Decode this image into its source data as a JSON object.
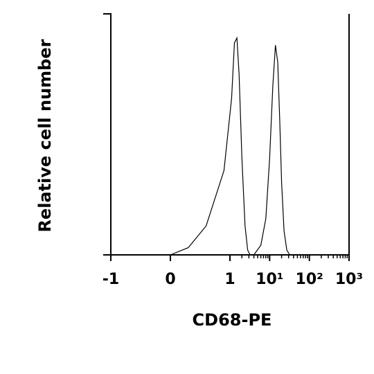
{
  "chart_data": {
    "type": "line",
    "xlabel": "CD68-PE",
    "ylabel": "Relative cell number",
    "xscale": "biexponential",
    "xlim": [
      -1,
      1000
    ],
    "ylim": [
      0,
      100
    ],
    "xticks": [
      -1,
      0,
      1,
      {
        "value": 10,
        "label": "10¹"
      },
      {
        "value": 100,
        "label": "10²"
      },
      {
        "value": 1000,
        "label": "10³"
      }
    ],
    "xminorticks": [
      2,
      3,
      4,
      5,
      6,
      7,
      8,
      9,
      20,
      30,
      40,
      50,
      60,
      70,
      80,
      90,
      200,
      300,
      400,
      500,
      600,
      700,
      800,
      900
    ],
    "series": [
      {
        "color": "#000000",
        "x": [
          0,
          0.3,
          0.6,
          0.9,
          1.1,
          1.3,
          1.5,
          1.7,
          2.0,
          2.4,
          2.8,
          3.2
        ],
        "values": [
          0,
          3,
          12,
          35,
          65,
          88,
          90,
          75,
          40,
          12,
          2,
          0
        ]
      },
      {
        "color": "#000000",
        "x": [
          4,
          6,
          8,
          10,
          12,
          14,
          16,
          18,
          20,
          23,
          27,
          32
        ],
        "values": [
          0,
          4,
          15,
          40,
          70,
          87,
          80,
          55,
          30,
          10,
          2,
          0
        ]
      }
    ]
  }
}
